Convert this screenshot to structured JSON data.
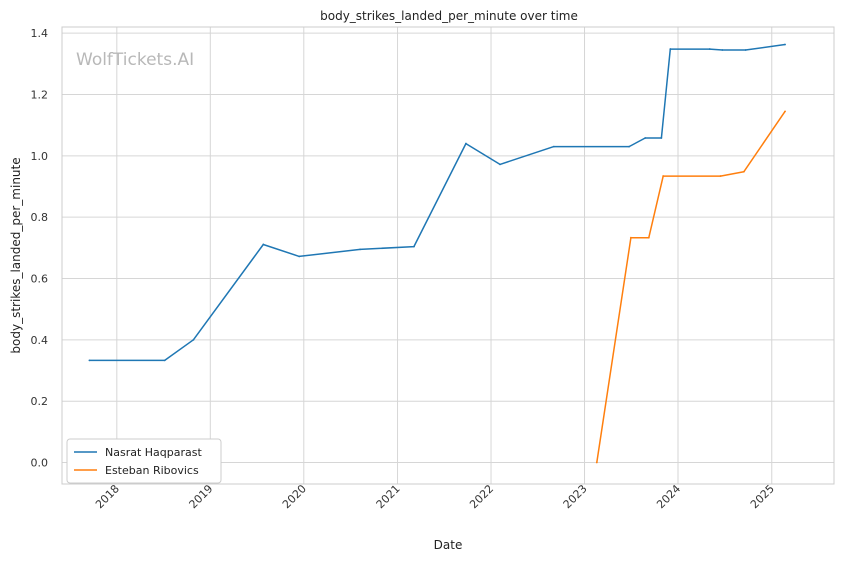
{
  "chart_data": {
    "type": "line",
    "title": "body_strikes_landed_per_minute over time",
    "xlabel": "Date",
    "ylabel": "body_strikes_landed_per_minute",
    "watermark": "WolfTickets.AI",
    "xlim": [
      "2017-06-01",
      "2025-09-01"
    ],
    "ylim": [
      -0.07,
      1.42
    ],
    "x_ticks": [
      "2018",
      "2019",
      "2020",
      "2021",
      "2022",
      "2023",
      "2024",
      "2025"
    ],
    "y_ticks": [
      0.0,
      0.2,
      0.4,
      0.6,
      0.8,
      1.0,
      1.2,
      1.4
    ],
    "y_tick_labels": [
      "0.0",
      "0.2",
      "0.4",
      "0.6",
      "0.8",
      "1.0",
      "1.2",
      "1.4"
    ],
    "grid": true,
    "legend_position": "bottom-left",
    "series": [
      {
        "name": "Nasrat Haqparast",
        "color": "#1f77b4",
        "points": [
          [
            "2017-09-16",
            0.333
          ],
          [
            "2018-07-07",
            0.333
          ],
          [
            "2018-10-27",
            0.4
          ],
          [
            "2019-07-27",
            0.711
          ],
          [
            "2019-12-14",
            0.672
          ],
          [
            "2020-08-08",
            0.695
          ],
          [
            "2021-03-06",
            0.704
          ],
          [
            "2021-09-25",
            1.04
          ],
          [
            "2022-02-05",
            0.972
          ],
          [
            "2022-09-03",
            1.03
          ],
          [
            "2023-06-24",
            1.03
          ],
          [
            "2023-08-26",
            1.058
          ],
          [
            "2023-10-28",
            1.058
          ],
          [
            "2023-12-02",
            1.348
          ],
          [
            "2024-05-04",
            1.348
          ],
          [
            "2024-06-22",
            1.345
          ],
          [
            "2024-09-21",
            1.345
          ],
          [
            "2025-02-22",
            1.363
          ]
        ]
      },
      {
        "name": "Esteban Ribovics",
        "color": "#ff7f0e",
        "points": [
          [
            "2023-02-18",
            0.0
          ],
          [
            "2023-07-01",
            0.733
          ],
          [
            "2023-09-09",
            0.733
          ],
          [
            "2023-11-04",
            0.934
          ],
          [
            "2024-06-15",
            0.934
          ],
          [
            "2024-09-14",
            0.948
          ],
          [
            "2025-02-22",
            1.145
          ]
        ]
      }
    ]
  }
}
